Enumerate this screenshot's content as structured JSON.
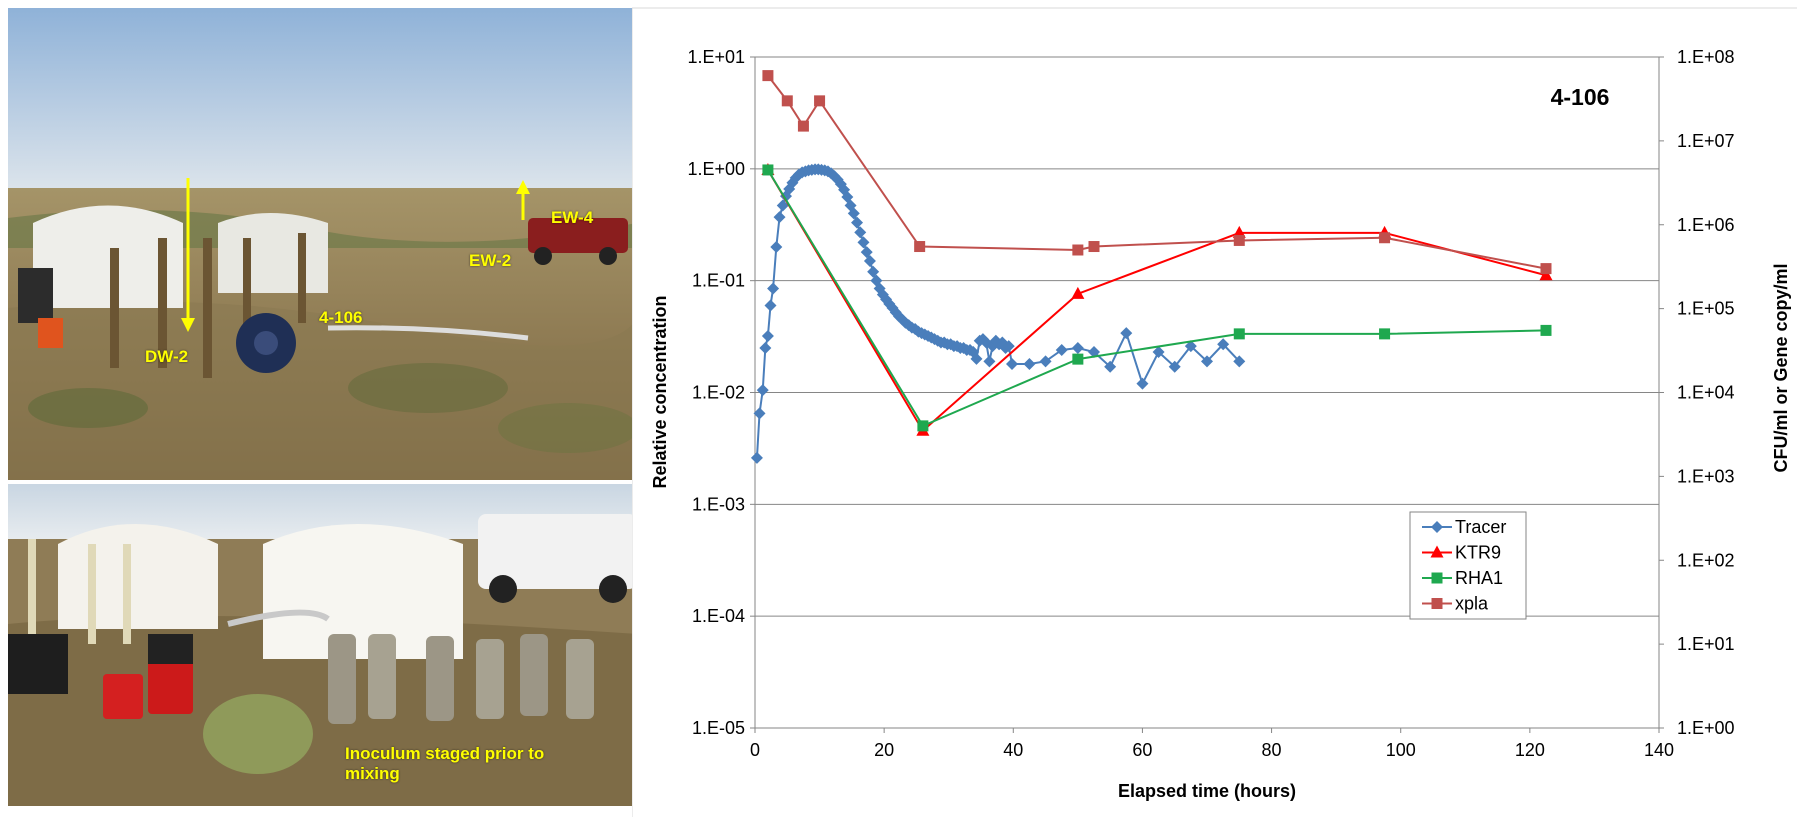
{
  "photo_top": {
    "labels": {
      "dw2": "DW-2",
      "well": "4-106",
      "ew2": "EW-2",
      "ew4": "EW-4"
    }
  },
  "photo_bottom": {
    "caption": "Inoculum staged prior to mixing"
  },
  "chart_data": {
    "type": "scatter",
    "title": "4-106",
    "xlabel": "Elapsed time (hours)",
    "ylabel": "Relative concentration",
    "y2label": "CFU/ml or Gene copy/ml",
    "xlim": [
      0,
      140
    ],
    "ylim": [
      1e-05,
      10
    ],
    "y2lim": [
      1,
      100000000
    ],
    "y_scale": "log",
    "y2_scale": "log",
    "x_ticks": [
      "0",
      "20",
      "40",
      "60",
      "80",
      "100",
      "120",
      "140"
    ],
    "y_ticks": [
      "1.E-05",
      "1.E-04",
      "1.E-03",
      "1.E-02",
      "1.E-01",
      "1.E+00",
      "1.E+01"
    ],
    "y2_ticks": [
      "1.E+00",
      "1.E+01",
      "1.E+02",
      "1.E+03",
      "1.E+04",
      "1.E+05",
      "1.E+06",
      "1.E+07",
      "1.E+08"
    ],
    "grid": "horizontal",
    "legend_position": "bottom-right",
    "series": [
      {
        "name": "Tracer",
        "axis": "left",
        "color": "#4a7ebb",
        "marker": "diamond",
        "x": [
          0.3,
          0.7,
          1.2,
          1.6,
          2.0,
          2.4,
          2.8,
          3.3,
          3.8,
          4.3,
          4.8,
          5.3,
          5.8,
          6.3,
          6.8,
          7.3,
          7.8,
          8.3,
          8.8,
          9.3,
          9.8,
          10.3,
          10.8,
          11.3,
          11.8,
          12.3,
          12.8,
          13.3,
          13.8,
          14.3,
          14.8,
          15.3,
          15.8,
          16.3,
          16.8,
          17.3,
          17.8,
          18.3,
          18.8,
          19.3,
          19.8,
          20.3,
          20.8,
          21.3,
          21.8,
          22.3,
          22.8,
          23.3,
          23.8,
          24.3,
          24.8,
          25.3,
          25.8,
          26.3,
          26.8,
          27.3,
          27.8,
          28.3,
          28.8,
          29.3,
          29.8,
          30.3,
          30.8,
          31.3,
          31.8,
          32.3,
          32.8,
          33.3,
          33.8,
          34.3,
          34.8,
          35.3,
          35.8,
          36.3,
          36.8,
          37.3,
          37.8,
          38.3,
          38.8,
          39.3,
          39.8,
          42.5,
          45.0,
          47.5,
          50.0,
          52.5,
          55.0,
          57.5,
          60.0,
          62.5,
          65.0,
          67.5,
          70.0,
          72.5,
          75.0
        ],
        "values": [
          0.0026,
          0.0065,
          0.0105,
          0.025,
          0.032,
          0.06,
          0.085,
          0.2,
          0.37,
          0.47,
          0.57,
          0.66,
          0.75,
          0.83,
          0.89,
          0.93,
          0.95,
          0.97,
          0.98,
          0.99,
          0.99,
          0.98,
          0.97,
          0.95,
          0.91,
          0.86,
          0.8,
          0.73,
          0.65,
          0.56,
          0.47,
          0.4,
          0.33,
          0.27,
          0.22,
          0.18,
          0.15,
          0.12,
          0.1,
          0.085,
          0.075,
          0.068,
          0.062,
          0.057,
          0.052,
          0.048,
          0.045,
          0.042,
          0.04,
          0.038,
          0.037,
          0.035,
          0.034,
          0.033,
          0.032,
          0.031,
          0.03,
          0.029,
          0.028,
          0.028,
          0.027,
          0.027,
          0.026,
          0.026,
          0.025,
          0.025,
          0.024,
          0.024,
          0.023,
          0.02,
          0.029,
          0.03,
          0.028,
          0.019,
          0.026,
          0.029,
          0.027,
          0.028,
          0.025,
          0.026,
          0.018,
          0.018,
          0.019,
          0.024,
          0.025,
          0.023,
          0.017,
          0.034,
          0.012,
          0.023,
          0.017,
          0.026,
          0.019,
          0.027,
          0.019
        ]
      },
      {
        "name": "KTR9",
        "axis": "right",
        "color": "#ff0000",
        "marker": "triangle",
        "x": [
          2.0,
          26.0,
          50.0,
          75.0,
          97.5,
          122.5
        ],
        "values": [
          4500000,
          3500,
          150000,
          800000,
          800000,
          250000
        ]
      },
      {
        "name": "RHA1",
        "axis": "right",
        "color": "#1fa84f",
        "marker": "square",
        "x": [
          2.0,
          26.0,
          50.0,
          75.0,
          97.5,
          122.5
        ],
        "values": [
          4500000,
          4000,
          25000,
          50000,
          50000,
          55000
        ]
      },
      {
        "name": "xpla",
        "axis": "right",
        "color": "#c0504d",
        "marker": "square",
        "x": [
          2.0,
          5.0,
          7.5,
          10.0,
          25.5,
          50.0,
          52.5,
          75.0,
          97.5,
          122.5
        ],
        "values": [
          60000000,
          30000000,
          15000000,
          30000000,
          550000,
          500000,
          550000,
          650000,
          700000,
          300000
        ]
      }
    ]
  }
}
